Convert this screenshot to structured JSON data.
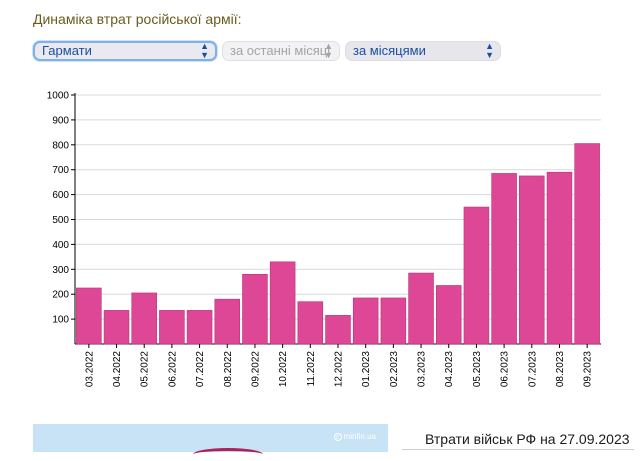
{
  "heading": "Динаміка втрат російської армії:",
  "controls": {
    "metric": "Гармати",
    "period": "за останні місяці",
    "grouping": "за місяцями"
  },
  "colors": {
    "bar": "#dd4795",
    "bar_stroke": "#b8347a",
    "heading": "#6b5a1e",
    "grid": "#d9d9d9"
  },
  "chart_data": {
    "type": "bar",
    "categories": [
      "03.2022",
      "04.2022",
      "05.2022",
      "06.2022",
      "07.2022",
      "08.2022",
      "09.2022",
      "10.2022",
      "11.2022",
      "12.2022",
      "01.2023",
      "02.2023",
      "03.2023",
      "04.2023",
      "05.2023",
      "06.2023",
      "07.2023",
      "08.2023",
      "09.2023"
    ],
    "values": [
      225,
      135,
      205,
      135,
      135,
      180,
      280,
      330,
      170,
      115,
      185,
      185,
      285,
      235,
      550,
      685,
      675,
      690,
      805
    ],
    "y_ticks": [
      100,
      200,
      300,
      400,
      500,
      600,
      700,
      800,
      900,
      1000
    ],
    "ylim": [
      0,
      1000
    ],
    "grid": true,
    "legend": "none"
  },
  "bottom": {
    "losses_title": "Втрати військ РФ на 27.09.2023",
    "logo_text": "minfin.ua"
  }
}
